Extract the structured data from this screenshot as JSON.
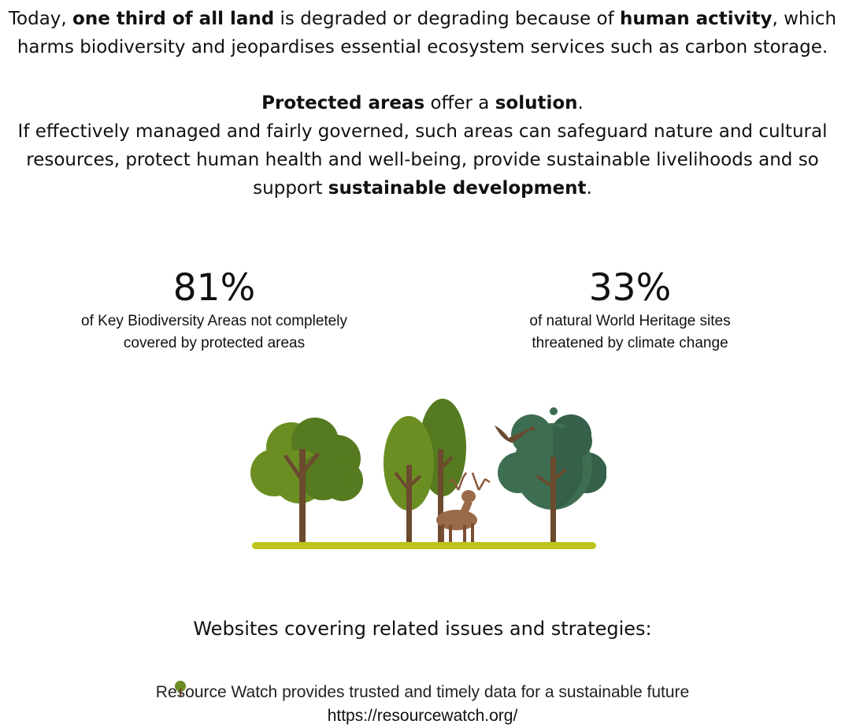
{
  "intro": {
    "p1": {
      "t1": "Today, ",
      "b1": "one third of all land",
      "t2": " is degraded or degrading because of ",
      "b2": "human activity",
      "t3": ", which harms biodiversity and jeopardises essential ecosystem services such as carbon storage."
    },
    "p2": {
      "b1": "Protected areas",
      "t1": " offer a ",
      "b2": "solution",
      "t2": "."
    },
    "p3": {
      "t1": "If effectively managed and fairly governed, such areas can safeguard nature and cultural resources, protect human health and well-being, provide sustainable livelihoods and so support ",
      "b1": "sustainable development",
      "t2": "."
    }
  },
  "stats": [
    {
      "value": "81%",
      "line1": "of Key Biodiversity Areas not completely",
      "line2": "covered by protected areas"
    },
    {
      "value": "33%",
      "line1": "of natural World Heritage sites",
      "line2": "threatened by climate change"
    }
  ],
  "illustration": {
    "colors": {
      "tree_light": "#6b8e23",
      "tree_dark": "#557a1f",
      "tree_teal": "#3e6e52",
      "tree_teal_dark": "#35604a",
      "trunk": "#6b4a2e",
      "ground": "#bfc41c",
      "deer": "#9a6a4a",
      "bird": "#6b4a32"
    }
  },
  "websites": {
    "heading": "Websites covering related issues and strategies:",
    "items": [
      {
        "icon": "tree-icon",
        "text": "Resource Watch provides trusted and timely data for a sustainable future",
        "url": "https://resourcewatch.org/"
      }
    ]
  }
}
